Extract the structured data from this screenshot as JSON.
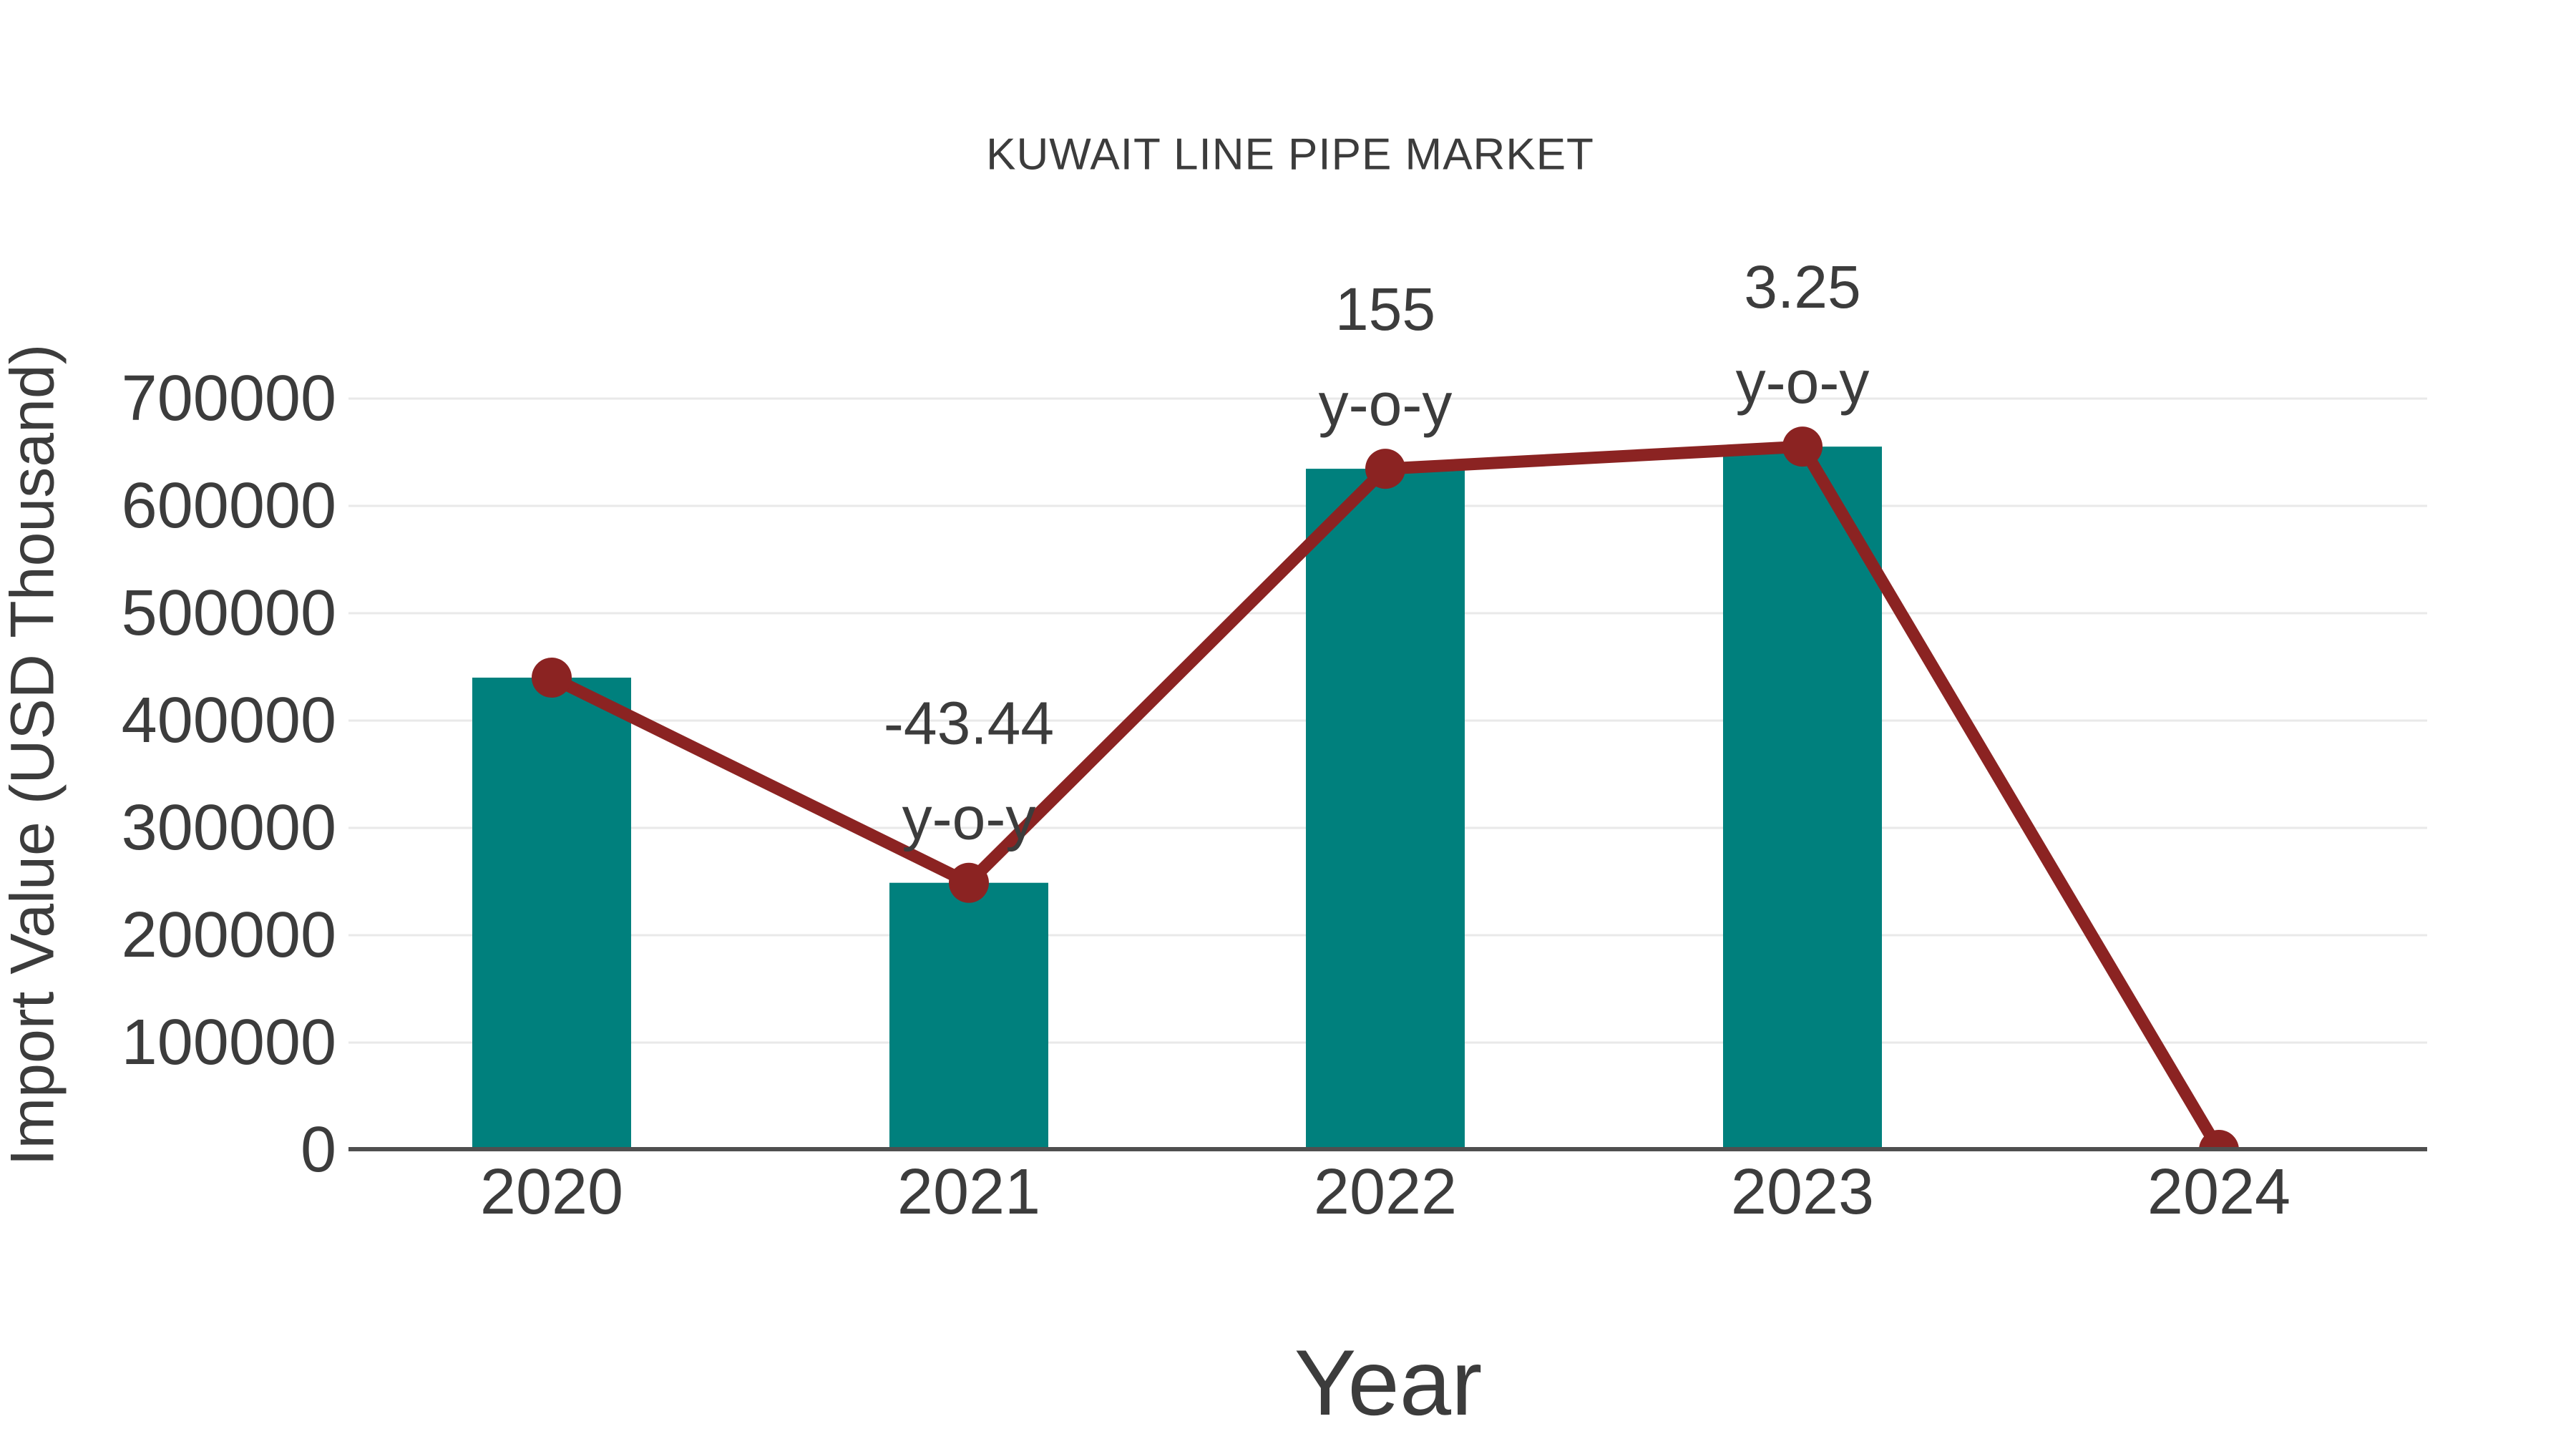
{
  "chart_data": {
    "type": "bar",
    "title": "KUWAIT LINE PIPE MARKET",
    "xlabel": "Year",
    "ylabel": "Import Value (USD Thousand)",
    "categories": [
      "2020",
      "2021",
      "2022",
      "2023",
      "2024"
    ],
    "series": [
      {
        "name": "import-value-bars",
        "type": "bar",
        "values": [
          440000,
          248860,
          634600,
          655230,
          null
        ]
      },
      {
        "name": "import-value-trend",
        "type": "line",
        "values": [
          440000,
          248860,
          634600,
          655230,
          0
        ]
      }
    ],
    "annotations": [
      {
        "category": "2021",
        "value_text": "-43.44",
        "suffix_text": "y-o-y"
      },
      {
        "category": "2022",
        "value_text": "155",
        "suffix_text": "y-o-y"
      },
      {
        "category": "2023",
        "value_text": "3.25",
        "suffix_text": "y-o-y"
      }
    ],
    "yticks": [
      0,
      100000,
      200000,
      300000,
      400000,
      500000,
      600000,
      700000
    ],
    "ylim": [
      0,
      700000
    ],
    "grid": true,
    "legend": "none",
    "palette": {
      "bar": "#00807D",
      "line": "#8B2322",
      "marker": "#8B2322",
      "text": "#3C3C3C",
      "gridline": "#E9E9E9",
      "axis": "#4F4F4F",
      "background": "#FFFFFF"
    }
  }
}
